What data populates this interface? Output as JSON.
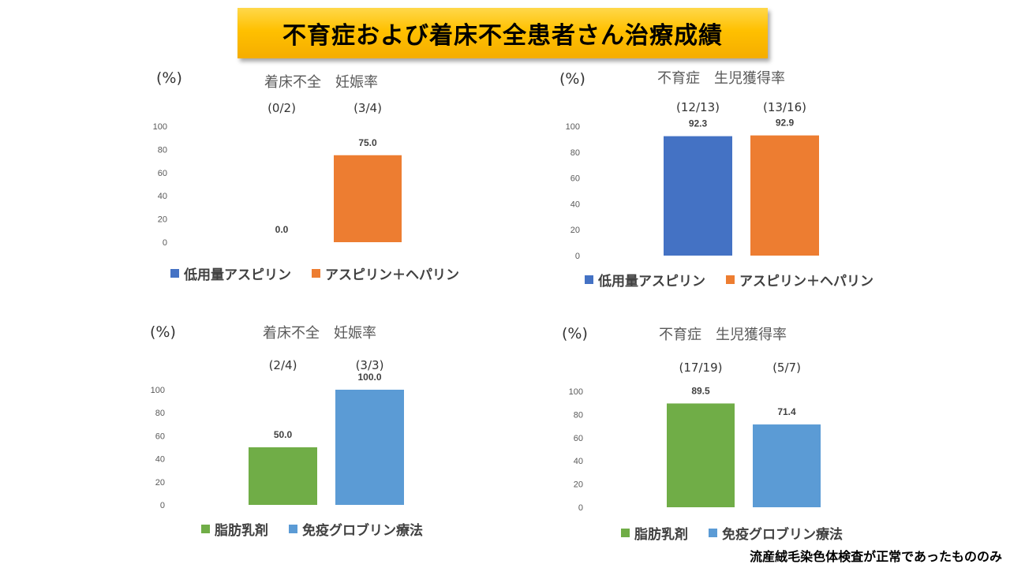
{
  "title": "不育症および着床不全患者さん治療成績",
  "footnote": "流産絨毛染色体検査が正常であったもののみ",
  "chart_data": [
    {
      "type": "bar",
      "title": "着床不全　妊娠率",
      "ylabel": "(%)",
      "ylim": [
        0,
        100
      ],
      "yticks": [
        "0",
        "20",
        "40",
        "60",
        "80",
        "100"
      ],
      "categories": [
        "低用量アスピリン",
        "アスピリン＋ヘパリン"
      ],
      "values": [
        0.0,
        75.0
      ],
      "value_labels": [
        "0.0",
        "75.0"
      ],
      "ratios": [
        "(0/2)",
        "(3/4)"
      ],
      "colors": [
        "#4472c4",
        "#ed7d31"
      ],
      "legend": "bottom"
    },
    {
      "type": "bar",
      "title": "不育症　生児獲得率",
      "ylabel": "(%)",
      "ylim": [
        0,
        100
      ],
      "yticks": [
        "0",
        "20",
        "40",
        "60",
        "80",
        "100"
      ],
      "categories": [
        "低用量アスピリン",
        "アスピリン＋ヘパリン"
      ],
      "values": [
        92.3,
        92.9
      ],
      "value_labels": [
        "92.3",
        "92.9"
      ],
      "ratios": [
        "(12/13)",
        "(13/16)"
      ],
      "colors": [
        "#4472c4",
        "#ed7d31"
      ],
      "legend": "bottom"
    },
    {
      "type": "bar",
      "title": "着床不全　妊娠率",
      "ylabel": "(%)",
      "ylim": [
        0,
        100
      ],
      "yticks": [
        "0",
        "20",
        "40",
        "60",
        "80",
        "100"
      ],
      "categories": [
        "脂肪乳剤",
        "免疫グロブリン療法"
      ],
      "values": [
        50.0,
        100.0
      ],
      "value_labels": [
        "50.0",
        "100.0"
      ],
      "ratios": [
        "(2/4)",
        "(3/3)"
      ],
      "colors": [
        "#70ad47",
        "#5b9bd5"
      ],
      "legend": "bottom"
    },
    {
      "type": "bar",
      "title": "不育症　生児獲得率",
      "ylabel": "(%)",
      "ylim": [
        0,
        100
      ],
      "yticks": [
        "0",
        "20",
        "40",
        "60",
        "80",
        "100"
      ],
      "categories": [
        "脂肪乳剤",
        "免疫グロブリン療法"
      ],
      "values": [
        89.5,
        71.4
      ],
      "value_labels": [
        "89.5",
        "71.4"
      ],
      "ratios": [
        "(17/19)",
        "(5/7)"
      ],
      "colors": [
        "#70ad47",
        "#5b9bd5"
      ],
      "legend": "bottom"
    }
  ]
}
